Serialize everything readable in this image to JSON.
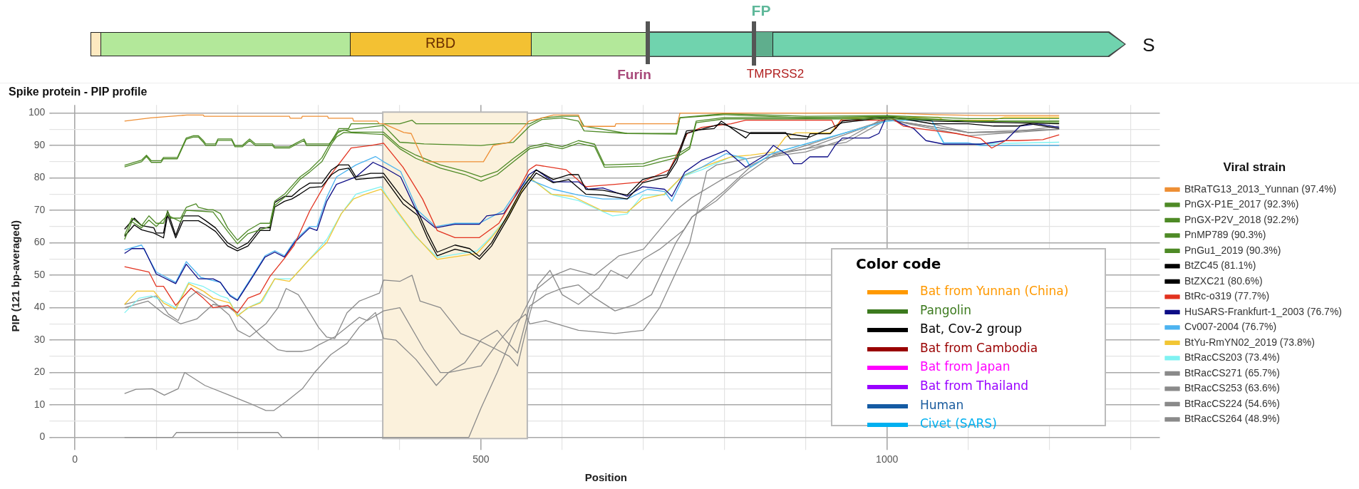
{
  "chart_data": {
    "type": "line",
    "title": "Spike protein - PIP profile",
    "xlabel": "Position",
    "ylabel": "PIP (121 bp-averaged)",
    "legend_title": "Viral strain",
    "legend": "right",
    "grid": true,
    "xlim": [
      -28,
      1336
    ],
    "ylim": [
      -3,
      102.5
    ],
    "xticks": [
      0,
      {
        "value": 100,
        "label": null
      },
      {
        "value": 200,
        "label": null
      },
      {
        "value": 300,
        "label": null
      },
      {
        "value": 400,
        "label": null
      },
      500,
      {
        "value": 600,
        "label": null
      },
      {
        "value": 700,
        "label": null
      },
      {
        "value": 800,
        "label": null
      },
      {
        "value": 900,
        "label": null
      },
      1000,
      {
        "value": 1100,
        "label": null
      },
      {
        "value": 1200,
        "label": null
      },
      {
        "value": 1300,
        "label": null
      }
    ],
    "yticks": [
      0,
      {
        "value": 5,
        "label": null
      },
      10,
      {
        "value": 15,
        "label": null
      },
      20,
      {
        "value": 25,
        "label": null
      },
      30,
      {
        "value": 35,
        "label": null
      },
      40,
      {
        "value": 45,
        "label": null
      },
      50,
      {
        "value": 55,
        "label": null
      },
      60,
      {
        "value": 65,
        "label": null
      },
      70,
      {
        "value": 75,
        "label": null
      },
      80,
      {
        "value": 85,
        "label": null
      },
      90,
      {
        "value": 95,
        "label": null
      },
      100
    ],
    "bands": [
      {
        "axis": "x",
        "from": 379,
        "to": 557,
        "color": "#fbf1dc"
      }
    ],
    "annotations": [
      "RBD",
      "FP",
      "Furin",
      "TMPRSS2",
      "S",
      "Color code",
      "Bat from Yunnan (China)",
      "Pangolin",
      "Bat, Cov-2 group",
      "Bat from Cambodia",
      "Bat from Japan",
      "Bat from Thailand",
      "Human",
      "Civet (SARS)"
    ],
    "series": [
      {
        "name": "BtRaTG13_2013_Yunnan (97.4%)",
        "color": "#ee8f35",
        "x": [
          61,
          93,
          138,
          158,
          159,
          264,
          265,
          279,
          280,
          311,
          312,
          342,
          343,
          372,
          375,
          380,
          405,
          414,
          430,
          457,
          503,
          515,
          535,
          547,
          559,
          571,
          589,
          620,
          625,
          665,
          666,
          742,
          745,
          1000,
          1060,
          1120,
          1212
        ],
        "values": [
          97.5,
          98.5,
          99.4,
          99.4,
          99,
          99,
          98.4,
          98.4,
          99,
          99,
          98.4,
          98.4,
          97.5,
          97.5,
          96.7,
          96.7,
          94,
          93.7,
          85,
          85,
          85,
          90,
          91,
          94,
          97.5,
          98.2,
          99.4,
          99.4,
          95.9,
          95.9,
          96.7,
          96.7,
          100,
          100,
          99.5,
          99.2,
          99.2
        ]
      },
      {
        "name": "PnGX-P1E_2017 (92.3%)",
        "color": "#4e8a26",
        "x": [
          61,
          82,
          88,
          94,
          106,
          109,
          126,
          137,
          146,
          152,
          158,
          161,
          173,
          176,
          193,
          197,
          206,
          215,
          222,
          243,
          246,
          264,
          273,
          282,
          285,
          313,
          319,
          325,
          337,
          340,
          380,
          400,
          415,
          420,
          560,
          575,
          600,
          620,
          627,
          650,
          680,
          741,
          745,
          800,
          900,
          1000,
          1100,
          1212
        ],
        "values": [
          83.4,
          85,
          86.6,
          84.8,
          84.8,
          85.9,
          85.9,
          91.9,
          92.6,
          92.6,
          91,
          90,
          90,
          91.6,
          91.6,
          89.6,
          89.6,
          91.5,
          90,
          90,
          89.2,
          89.2,
          90.4,
          91.5,
          90,
          90,
          92.6,
          95.2,
          95.2,
          96.7,
          96.7,
          96.7,
          97.8,
          96.7,
          96.7,
          98.5,
          99,
          99,
          95.9,
          95,
          93.7,
          93.5,
          98.6,
          99.8,
          99,
          99.2,
          98.3,
          98.3
        ]
      },
      {
        "name": "PnGX-P2V_2018 (92.2%)",
        "color": "#4e8a26",
        "x": [
          61,
          82,
          88,
          94,
          106,
          109,
          126,
          137,
          146,
          152,
          158,
          161,
          173,
          176,
          193,
          197,
          206,
          215,
          222,
          243,
          246,
          264,
          273,
          282,
          285,
          313,
          319,
          325,
          380,
          400,
          430,
          500,
          540,
          560,
          575,
          600,
          620,
          627,
          680,
          740,
          745,
          800,
          900,
          1000,
          1100,
          1212
        ],
        "values": [
          83.9,
          85.5,
          87,
          85.3,
          85.3,
          86.3,
          86.3,
          92.3,
          93,
          93,
          91.5,
          90.5,
          90.5,
          92,
          92,
          90,
          90,
          92,
          90.5,
          90.5,
          89.6,
          89.6,
          90.8,
          92,
          90.5,
          90.5,
          92,
          94.5,
          96.2,
          91,
          90.5,
          90,
          91,
          96,
          98,
          98.5,
          97.5,
          94.5,
          93.7,
          93.7,
          98.5,
          99.5,
          98.5,
          99,
          97.5,
          97.5
        ]
      },
      {
        "name": "PnMP789 (90.3%)",
        "color": "#4e8a26",
        "x": [
          61,
          70,
          82,
          91,
          100,
          109,
          114,
          118,
          130,
          137,
          149,
          152,
          164,
          170,
          179,
          188,
          200,
          213,
          228,
          240,
          246,
          258,
          277,
          289,
          304,
          316,
          322,
          331,
          340,
          380,
          400,
          420,
          450,
          480,
          500,
          520,
          540,
          560,
          580,
          600,
          620,
          640,
          652,
          700,
          720,
          740,
          757,
          765,
          800,
          1000,
          1100,
          1212
        ],
        "values": [
          62.3,
          67.6,
          65.3,
          68.3,
          66,
          66,
          69.8,
          67.6,
          67.6,
          70.9,
          72,
          70.9,
          70.2,
          70.2,
          69,
          64.6,
          60.8,
          63.8,
          66,
          66,
          72.8,
          75,
          80.3,
          82.5,
          86.2,
          91.5,
          93.7,
          94.8,
          94.1,
          94.1,
          89.6,
          87,
          84,
          82,
          80.3,
          82,
          86,
          89.6,
          90.7,
          89.6,
          91.5,
          90.4,
          84,
          84.4,
          86,
          87,
          89.6,
          97.5,
          98.6,
          98.6,
          97.5,
          97.5
        ]
      },
      {
        "name": "PnGu1_2019 (90.3%)",
        "color": "#4e8a26",
        "x": [
          61,
          70,
          82,
          91,
          100,
          114,
          130,
          137,
          152,
          170,
          188,
          200,
          213,
          240,
          246,
          258,
          277,
          289,
          304,
          316,
          322,
          331,
          380,
          400,
          420,
          450,
          480,
          500,
          520,
          540,
          560,
          580,
          600,
          620,
          640,
          652,
          700,
          740,
          757,
          765,
          800,
          1000,
          1212
        ],
        "values": [
          61,
          66.5,
          64.6,
          67,
          65,
          68.5,
          66.5,
          70,
          69.8,
          69.5,
          63.5,
          59.7,
          62.8,
          65,
          71.5,
          74,
          79.5,
          81.8,
          85,
          90.5,
          92.6,
          94,
          93.4,
          89,
          86,
          83,
          81,
          79,
          81,
          85,
          89,
          90,
          89,
          90.7,
          89.6,
          83.3,
          83.6,
          86.2,
          89,
          97,
          98.2,
          98.2,
          97
        ]
      },
      {
        "name": "BtZC45 (81.1%)",
        "color": "#000000",
        "x": [
          61,
          73,
          82,
          97,
          100,
          109,
          114,
          124,
          133,
          152,
          161,
          173,
          188,
          200,
          213,
          228,
          240,
          246,
          258,
          267,
          277,
          289,
          304,
          316,
          325,
          337,
          346,
          364,
          380,
          404,
          422,
          434,
          446,
          468,
          486,
          498,
          513,
          534,
          550,
          568,
          589,
          608,
          620,
          629,
          650,
          680,
          699,
          711,
          729,
          741,
          753,
          787,
          796,
          826,
          832,
          875,
          881,
          902,
          905,
          930,
          945,
          1000,
          1024,
          1055,
          1100,
          1131,
          1161,
          1176,
          1212
        ],
        "values": [
          64.2,
          67.6,
          65.3,
          64.6,
          63,
          63,
          69.8,
          62.3,
          68.3,
          68.3,
          66.8,
          64.6,
          60,
          58.2,
          60,
          64.6,
          64.6,
          72.4,
          74.3,
          74.3,
          76.5,
          78.4,
          78.4,
          82.5,
          84,
          84,
          80.3,
          81.4,
          81.4,
          73.5,
          69.8,
          63,
          57.1,
          59.3,
          58.2,
          55.8,
          60,
          69,
          76.5,
          82.5,
          79.5,
          81,
          81,
          76.5,
          76.2,
          74.7,
          79.5,
          80.3,
          81,
          86.2,
          94.5,
          95.2,
          97.5,
          92.3,
          94,
          94,
          92,
          92,
          93.6,
          93.6,
          97.5,
          99,
          98,
          96.7,
          96.7,
          96,
          96,
          96.7,
          95.2
        ]
      },
      {
        "name": "BtZXC21 (80.6%)",
        "color": "#000000",
        "x": [
          61,
          73,
          82,
          97,
          109,
          114,
          124,
          133,
          152,
          161,
          173,
          188,
          200,
          213,
          228,
          240,
          246,
          258,
          267,
          277,
          289,
          304,
          316,
          325,
          337,
          346,
          380,
          404,
          422,
          434,
          446,
          468,
          486,
          498,
          513,
          534,
          550,
          568,
          589,
          608,
          629,
          650,
          680,
          699,
          729,
          741,
          753,
          796,
          832,
          875,
          905,
          945,
          1000,
          1055,
          1212
        ],
        "values": [
          62,
          65.5,
          64,
          63,
          61.5,
          68.5,
          61.5,
          66.8,
          66.8,
          65.5,
          63.5,
          59,
          57.5,
          59,
          63.8,
          63.8,
          71,
          72.8,
          73.5,
          75,
          77,
          77.3,
          81,
          82.5,
          83,
          79.5,
          80.3,
          72,
          68.5,
          61.5,
          56,
          58,
          57,
          54.9,
          59,
          68,
          75.5,
          81.5,
          78.5,
          79.5,
          75,
          74.7,
          73.5,
          78.5,
          80.3,
          85,
          93.7,
          96.7,
          93.7,
          93.7,
          92.6,
          97,
          98.7,
          97.5,
          96.7
        ]
      },
      {
        "name": "BtRc-o319 (77.7%)",
        "color": "#e2321f",
        "x": [
          61,
          91,
          100,
          109,
          124,
          143,
          158,
          170,
          188,
          200,
          213,
          228,
          240,
          258,
          270,
          289,
          313,
          340,
          364,
          380,
          404,
          428,
          446,
          468,
          498,
          522,
          540,
          559,
          568,
          605,
          629,
          665,
          699,
          732,
          754,
          772,
          808,
          826,
          932,
          937,
          943,
          996,
          1002,
          1020,
          1039,
          1085,
          1115,
          1129,
          1146,
          1161,
          1192,
          1212
        ],
        "values": [
          52.6,
          51,
          46.6,
          46.6,
          40.7,
          46,
          42.9,
          40,
          40.7,
          38.4,
          42.9,
          44.4,
          49.6,
          55.2,
          59.3,
          69.8,
          80.3,
          89.2,
          90,
          90.7,
          83.3,
          73.5,
          63.8,
          61.6,
          61.6,
          66,
          73.5,
          82.5,
          84,
          82.5,
          77.3,
          78,
          78.8,
          82.5,
          93.7,
          95.6,
          96.7,
          97.8,
          97.8,
          95.2,
          97.8,
          97.8,
          99,
          96,
          95.2,
          93.7,
          92.2,
          89.2,
          91.5,
          91.5,
          91.8,
          93.3
        ]
      },
      {
        "name": "HuSARS-Frankfurt-1_2003 (76.7%)",
        "color": "#0d0d86",
        "x": [
          61,
          70,
          85,
          100,
          124,
          137,
          152,
          170,
          179,
          191,
          200,
          219,
          234,
          246,
          258,
          270,
          289,
          298,
          310,
          322,
          346,
          367,
          380,
          401,
          422,
          444,
          468,
          498,
          507,
          528,
          544,
          559,
          568,
          589,
          620,
          632,
          650,
          680,
          699,
          726,
          735,
          751,
          772,
          802,
          826,
          850,
          860,
          878,
          885,
          895,
          905,
          927,
          936,
          945,
          978,
          990,
          1000,
          1018,
          1033,
          1048,
          1070,
          1115,
          1146,
          1164,
          1185,
          1212
        ],
        "values": [
          56.7,
          58.2,
          58.2,
          50.4,
          47.4,
          53.4,
          48.9,
          48.9,
          47.8,
          43.6,
          42.2,
          49.6,
          55.6,
          57.1,
          55.6,
          60,
          64.6,
          63.8,
          72.8,
          78,
          80.3,
          84.8,
          83.3,
          80.3,
          69,
          64.6,
          65.7,
          65.7,
          68.3,
          69,
          75,
          81,
          82.5,
          78.8,
          78.8,
          76.5,
          76.9,
          74.3,
          77.3,
          76.5,
          74.3,
          81.8,
          85.5,
          88.5,
          83.3,
          87,
          90,
          87,
          84.4,
          84.4,
          86.5,
          86.5,
          90,
          92.3,
          92.3,
          93.7,
          99.3,
          96.7,
          95.2,
          91.5,
          90.4,
          90.4,
          91.5,
          96,
          96.7,
          95.6
        ]
      },
      {
        "name": "Cv007-2004 (76.7%)",
        "color": "#4cb3f0",
        "x": [
          61,
          82,
          100,
          124,
          137,
          155,
          179,
          188,
          200,
          219,
          234,
          246,
          258,
          270,
          289,
          298,
          310,
          322,
          346,
          370,
          380,
          401,
          422,
          444,
          468,
          498,
          528,
          544,
          559,
          589,
          620,
          650,
          680,
          705,
          726,
          735,
          751,
          772,
          802,
          826,
          832,
          860,
          1000,
          1020,
          1055,
          1070,
          1100,
          1115,
          1212
        ],
        "values": [
          57.8,
          59.3,
          51,
          47.8,
          54.2,
          49.3,
          47.8,
          44.4,
          42.5,
          50,
          56,
          57.5,
          56,
          60.5,
          65,
          65,
          74,
          80.3,
          84,
          86.6,
          85,
          82,
          70,
          65,
          66,
          66,
          70,
          76,
          79.5,
          76.5,
          74.7,
          73.5,
          73.5,
          76.5,
          75.8,
          72.8,
          81,
          83.3,
          87.5,
          86,
          83.3,
          87.7,
          97.5,
          97.8,
          97.8,
          90.8,
          90.8,
          90,
          90
        ]
      },
      {
        "name": "BtYu-RmYN02_2019 (73.8%)",
        "color": "#f2c634",
        "x": [
          61,
          76,
          97,
          109,
          124,
          140,
          158,
          170,
          191,
          200,
          213,
          228,
          246,
          264,
          289,
          310,
          328,
          343,
          358,
          377,
          395,
          419,
          446,
          495,
          513,
          534,
          559,
          586,
          613,
          650,
          680,
          699,
          726,
          747,
          772,
          808,
          832,
          861,
          875,
          888,
          930,
          945,
          1000,
          1024,
          1063,
          1070,
          1130,
          1145,
          1212
        ],
        "values": [
          41,
          45.1,
          45.1,
          41.4,
          39.5,
          47.4,
          45.1,
          42.9,
          41.4,
          37.3,
          40,
          41.4,
          48.9,
          48.1,
          54.9,
          60,
          69,
          73.5,
          75,
          76.5,
          70.5,
          62.3,
          54.9,
          56.7,
          61.6,
          68.3,
          80.3,
          75,
          74.3,
          69.8,
          69.4,
          73.5,
          75,
          80.3,
          83.3,
          86.5,
          87,
          88,
          92.6,
          93.9,
          93.9,
          98.3,
          99,
          98.7,
          98.7,
          97.8,
          97.8,
          98.7,
          98.7
        ]
      },
      {
        "name": "BtRacCS203 (73.4%)",
        "color": "#7ff2f2",
        "x": [
          61,
          79,
          94,
          109,
          124,
          140,
          158,
          179,
          188,
          200,
          219,
          231,
          246,
          267,
          294,
          310,
          328,
          346,
          377,
          395,
          419,
          446,
          495,
          513,
          534,
          559,
          589,
          620,
          662,
          680,
          699,
          726,
          747,
          772,
          808,
          826,
          832,
          860,
          1000,
          1024,
          1055,
          1070,
          1100,
          1212
        ],
        "values": [
          38.4,
          42.9,
          43.6,
          42,
          40,
          47.8,
          46.5,
          43.6,
          42.9,
          37.7,
          40.7,
          42,
          48.9,
          48.9,
          56.4,
          61,
          69,
          75,
          77.3,
          70,
          62,
          55.5,
          57.5,
          62,
          68.5,
          80.3,
          74.7,
          73,
          68.3,
          68.9,
          74.7,
          74.7,
          80.3,
          82.5,
          86.5,
          85.8,
          83.3,
          87.7,
          97.5,
          97.8,
          97.8,
          90.4,
          90.4,
          91
        ]
      },
      {
        "name": "BtRacCS271 (65.7%)",
        "color": "#8a8a8a",
        "x": [
          61,
          100,
          115,
          127,
          140,
          150,
          170,
          190,
          200,
          215,
          235,
          250,
          260,
          275,
          290,
          300,
          310,
          320,
          335,
          350,
          375,
          380,
          400,
          415,
          425,
          450,
          475,
          500,
          520,
          535,
          545,
          560,
          570,
          585,
          600,
          620,
          645,
          660,
          680,
          700,
          720,
          750,
          760,
          780,
          800,
          830,
          850,
          870,
          900,
          950,
          1000,
          1050,
          1100,
          1150,
          1212
        ],
        "values": [
          41,
          43.6,
          38,
          36,
          43,
          45,
          42,
          37.7,
          33,
          31,
          35,
          40,
          45.9,
          44,
          38,
          33.9,
          30.9,
          30.5,
          38.4,
          42,
          44.5,
          48.5,
          48.1,
          50,
          42,
          40,
          32,
          29.5,
          27,
          25,
          22,
          38,
          47,
          51.5,
          44,
          41,
          46,
          51.5,
          49,
          55,
          58,
          64,
          68,
          72,
          76,
          83,
          86,
          87,
          88,
          92,
          99,
          97,
          94,
          94,
          96
        ]
      },
      {
        "name": "BtRacCS253 (63.6%)",
        "color": "#8a8a8a",
        "x": [
          61,
          90,
          110,
          130,
          150,
          170,
          190,
          210,
          230,
          240,
          250,
          260,
          280,
          290,
          300,
          320,
          330,
          350,
          360,
          380,
          400,
          430,
          450,
          460,
          480,
          500,
          520,
          530,
          545,
          560,
          580,
          600,
          620,
          640,
          665,
          690,
          710,
          740,
          760,
          790,
          820,
          860,
          900,
          950,
          1000,
          1100,
          1212
        ],
        "values": [
          40,
          42,
          38,
          35,
          36.5,
          41,
          40,
          36,
          31,
          29,
          27,
          26.5,
          26.5,
          27,
          28.5,
          31,
          33,
          37,
          36,
          39,
          40,
          27,
          20,
          20,
          23,
          30,
          33,
          30,
          26,
          40.5,
          44,
          46,
          47,
          43,
          39,
          41,
          44,
          60,
          68,
          73,
          80,
          87,
          89,
          91,
          98,
          93,
          95
        ]
      },
      {
        "name": "BtRacCS224 (54.6%)",
        "color": "#8a8a8a",
        "x": [
          61,
          75,
          95,
          110,
          127,
          135,
          160,
          190,
          215,
          235,
          245,
          260,
          280,
          295,
          315,
          335,
          350,
          370,
          380,
          395,
          420,
          445,
          460,
          500,
          520,
          540,
          555,
          560,
          580,
          620,
          665,
          700,
          720,
          757,
          778,
          790,
          850,
          900,
          1000,
          1100,
          1212
        ],
        "values": [
          13.5,
          14.8,
          15,
          13,
          15,
          20,
          16,
          13,
          10.5,
          8.3,
          8.3,
          11,
          15,
          20,
          25.5,
          29,
          34,
          38.5,
          30.5,
          30,
          24,
          16,
          20,
          22,
          29,
          35,
          38,
          35,
          36,
          33,
          32,
          33,
          40,
          60,
          82,
          84,
          87,
          89,
          98,
          94,
          95
        ]
      },
      {
        "name": "BtRacCS264 (48.9%)",
        "color": "#8a8a8a",
        "x": [
          61,
          120,
          125,
          250,
          255,
          485,
          500,
          520,
          545,
          565,
          590,
          610,
          640,
          670,
          700,
          740,
          760,
          800,
          850,
          900,
          1000,
          1100,
          1212
        ],
        "values": [
          0,
          0,
          1.5,
          1.5,
          0,
          0,
          9,
          20,
          35,
          45,
          50,
          52,
          50,
          56,
          58,
          70,
          74,
          80,
          86,
          90,
          98,
          94,
          95
        ]
      }
    ]
  }
}
